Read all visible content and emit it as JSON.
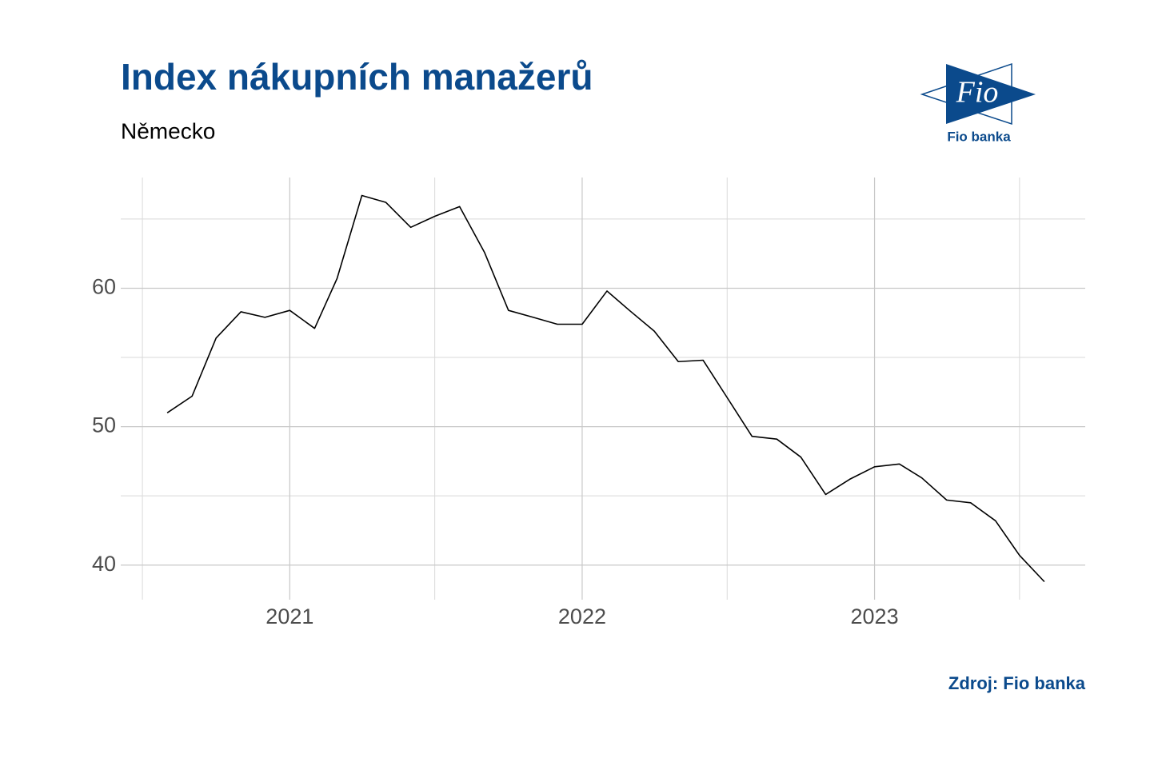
{
  "chart_data": {
    "type": "line",
    "title": "Index nákupních manažerů",
    "subtitle": "Německo",
    "source": "Zdroj: Fio banka",
    "logo_text": "Fio",
    "logo_caption": "Fio banka",
    "x": [
      "2020-08",
      "2020-09",
      "2020-10",
      "2020-11",
      "2020-12",
      "2021-01",
      "2021-02",
      "2021-03",
      "2021-04",
      "2021-05",
      "2021-06",
      "2021-07",
      "2021-08",
      "2021-09",
      "2021-10",
      "2021-11",
      "2021-12",
      "2022-01",
      "2022-02",
      "2022-03",
      "2022-04",
      "2022-05",
      "2022-06",
      "2022-07",
      "2022-08",
      "2022-09",
      "2022-10",
      "2022-11",
      "2022-12",
      "2023-01",
      "2023-02",
      "2023-03",
      "2023-04",
      "2023-05",
      "2023-06",
      "2023-07",
      "2023-08"
    ],
    "series": [
      {
        "color": "#000000",
        "values": [
          51.0,
          52.2,
          56.4,
          58.3,
          57.9,
          58.4,
          57.1,
          60.7,
          66.7,
          66.2,
          64.4,
          65.2,
          65.9,
          62.6,
          58.4,
          57.9,
          57.4,
          57.4,
          59.8,
          58.4,
          56.9,
          54.7,
          54.8,
          52.1,
          49.3,
          49.1,
          47.8,
          45.1,
          46.2,
          47.1,
          47.3,
          46.3,
          44.7,
          44.5,
          43.2,
          40.7,
          38.8
        ]
      }
    ],
    "xlim": [
      "2020-06-04",
      "2023-09-21"
    ],
    "xticks": [
      {
        "value": "2021-01-01",
        "label": "2021"
      },
      {
        "value": "2022-01-01",
        "label": "2022"
      },
      {
        "value": "2023-01-01",
        "label": "2023"
      }
    ],
    "x_minor_ticks": [
      "2020-07-01",
      "2021-07-01",
      "2022-07-01",
      "2023-07-01"
    ],
    "ylim": [
      37.5,
      68.0
    ],
    "yticks": [
      40,
      50,
      60
    ],
    "y_minor_ticks": [
      45,
      55,
      65
    ],
    "grid": true
  }
}
